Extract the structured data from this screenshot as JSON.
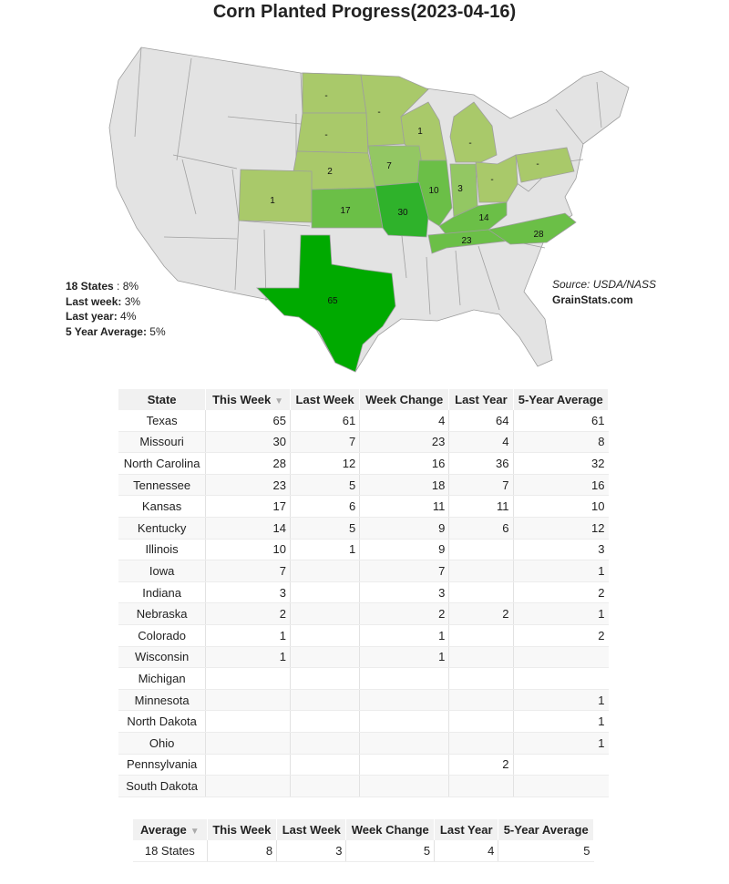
{
  "title": "Corn Planted Progress(2023-04-16)",
  "colors": {
    "none": "#e3e3e3",
    "low": "#a9c96a",
    "mid": "#93c763",
    "midhigh": "#6bbf47",
    "high": "#2fb22b",
    "top": "#00aa00"
  },
  "map_labels": {
    "north_dakota": "-",
    "south_dakota": "-",
    "minnesota": "-",
    "wisconsin": "1",
    "michigan": "-",
    "nebraska": "2",
    "iowa": "7",
    "illinois": "10",
    "indiana": "3",
    "ohio": "-",
    "pennsylvania": "-",
    "colorado": "1",
    "kansas": "17",
    "missouri": "30",
    "kentucky": "14",
    "tennessee": "23",
    "north_carolina": "28",
    "texas": "65"
  },
  "stats": {
    "states_label": "18 States",
    "states_value": " : 8%",
    "last_week_label": "Last week:",
    "last_week_value": " 3%",
    "last_year_label": "Last year:",
    "last_year_value": " 4%",
    "avg_label": "5 Year Average:",
    "avg_value": " 5%"
  },
  "source": {
    "text": "Source: USDA/NASS",
    "site": "GrainStats.com"
  },
  "table": {
    "headers": [
      "State",
      "This Week",
      "Last Week",
      "Week Change",
      "Last Year",
      "5-Year Average"
    ],
    "sort_icon": "▼",
    "rows": [
      [
        "Texas",
        "65",
        "61",
        "4",
        "64",
        "61"
      ],
      [
        "Missouri",
        "30",
        "7",
        "23",
        "4",
        "8"
      ],
      [
        "North Carolina",
        "28",
        "12",
        "16",
        "36",
        "32"
      ],
      [
        "Tennessee",
        "23",
        "5",
        "18",
        "7",
        "16"
      ],
      [
        "Kansas",
        "17",
        "6",
        "11",
        "11",
        "10"
      ],
      [
        "Kentucky",
        "14",
        "5",
        "9",
        "6",
        "12"
      ],
      [
        "Illinois",
        "10",
        "1",
        "9",
        "",
        "3"
      ],
      [
        "Iowa",
        "7",
        "",
        "7",
        "",
        "1"
      ],
      [
        "Indiana",
        "3",
        "",
        "3",
        "",
        "2"
      ],
      [
        "Nebraska",
        "2",
        "",
        "2",
        "2",
        "1"
      ],
      [
        "Colorado",
        "1",
        "",
        "1",
        "",
        "2"
      ],
      [
        "Wisconsin",
        "1",
        "",
        "1",
        "",
        ""
      ],
      [
        "Michigan",
        "",
        "",
        "",
        "",
        ""
      ],
      [
        "Minnesota",
        "",
        "",
        "",
        "",
        "1"
      ],
      [
        "North Dakota",
        "",
        "",
        "",
        "",
        "1"
      ],
      [
        "Ohio",
        "",
        "",
        "",
        "",
        "1"
      ],
      [
        "Pennsylvania",
        "",
        "",
        "",
        "2",
        ""
      ],
      [
        "South Dakota",
        "",
        "",
        "",
        "",
        ""
      ]
    ]
  },
  "avg_table": {
    "headers": [
      "Average",
      "This Week",
      "Last Week",
      "Week Change",
      "Last Year",
      "5-Year Average"
    ],
    "sort_icon": "▼",
    "rows": [
      [
        "18 States",
        "8",
        "3",
        "5",
        "4",
        "5"
      ]
    ]
  }
}
